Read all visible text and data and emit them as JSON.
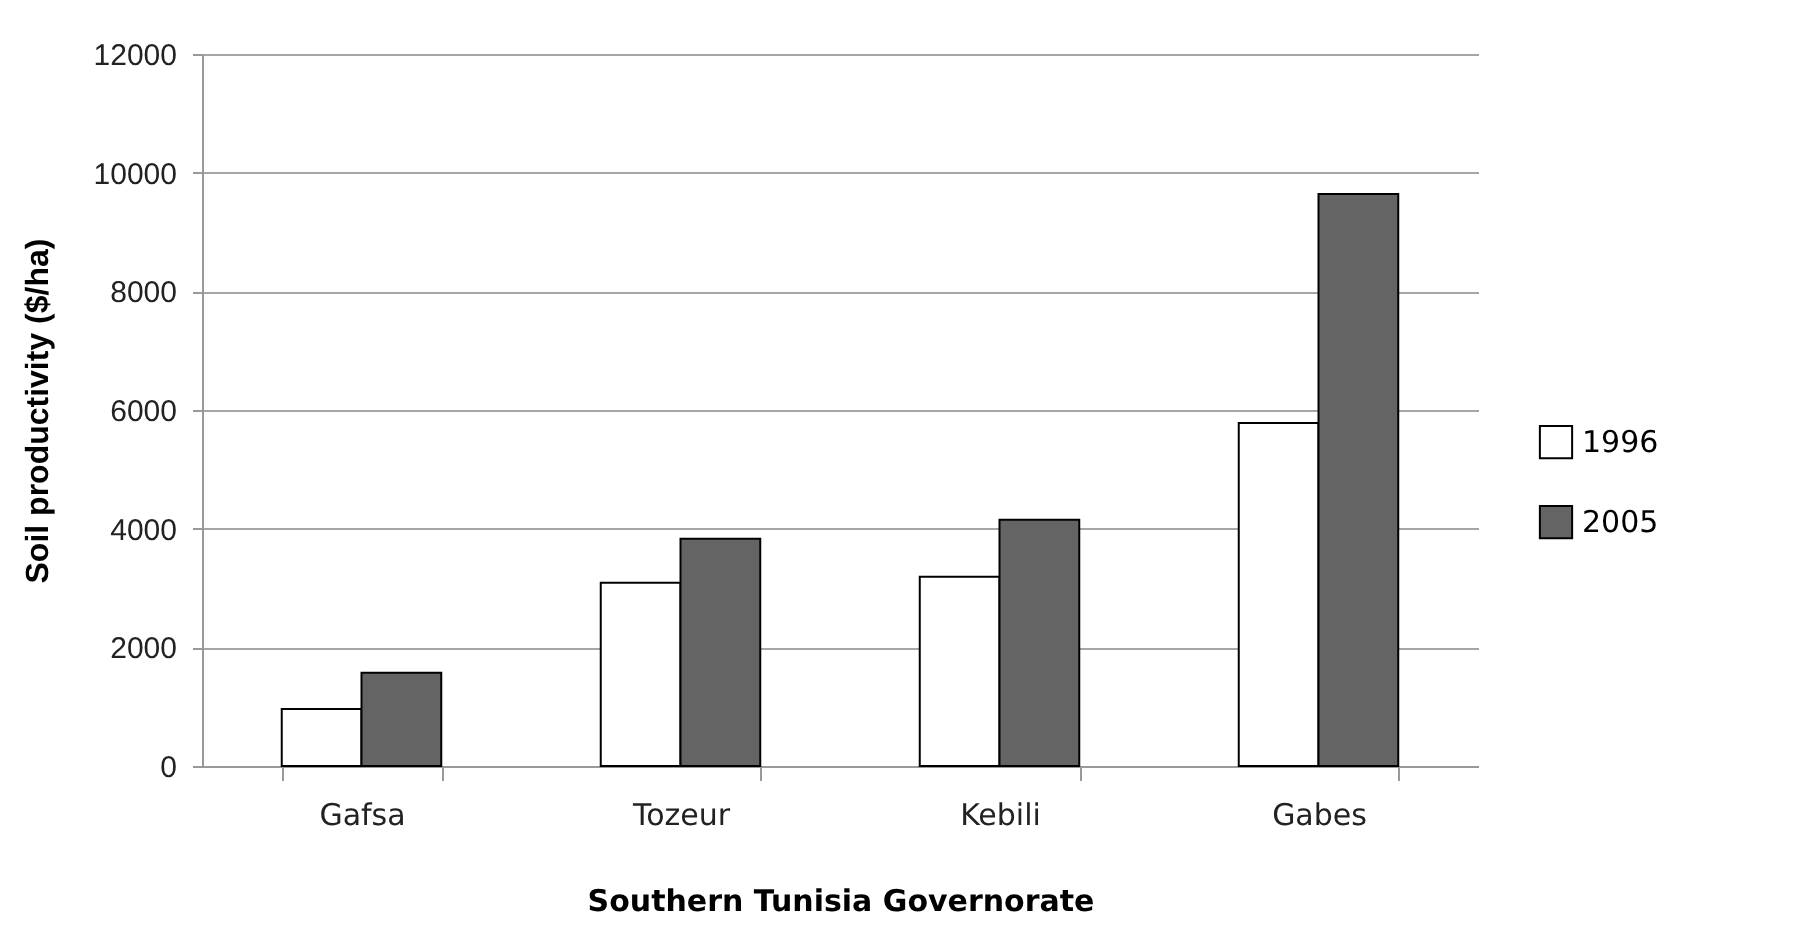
{
  "chart_data": {
    "type": "bar",
    "xlabel": "Southern Tunisia  Governorate",
    "ylabel": "Soil productivity ($/ha)",
    "categories": [
      "Gafsa",
      "Tozeur",
      "Kebili",
      "Gabes"
    ],
    "series": [
      {
        "name": "1996",
        "color": "#ffffff",
        "values": [
          960,
          3090,
          3190,
          5780
        ]
      },
      {
        "name": "2005",
        "color": "#646464",
        "values": [
          1570,
          3830,
          4150,
          9640
        ]
      }
    ],
    "ylim": [
      0,
      12000
    ],
    "yticks": [
      0,
      2000,
      4000,
      6000,
      8000,
      10000,
      12000
    ],
    "grid": "y",
    "legend": "right"
  }
}
